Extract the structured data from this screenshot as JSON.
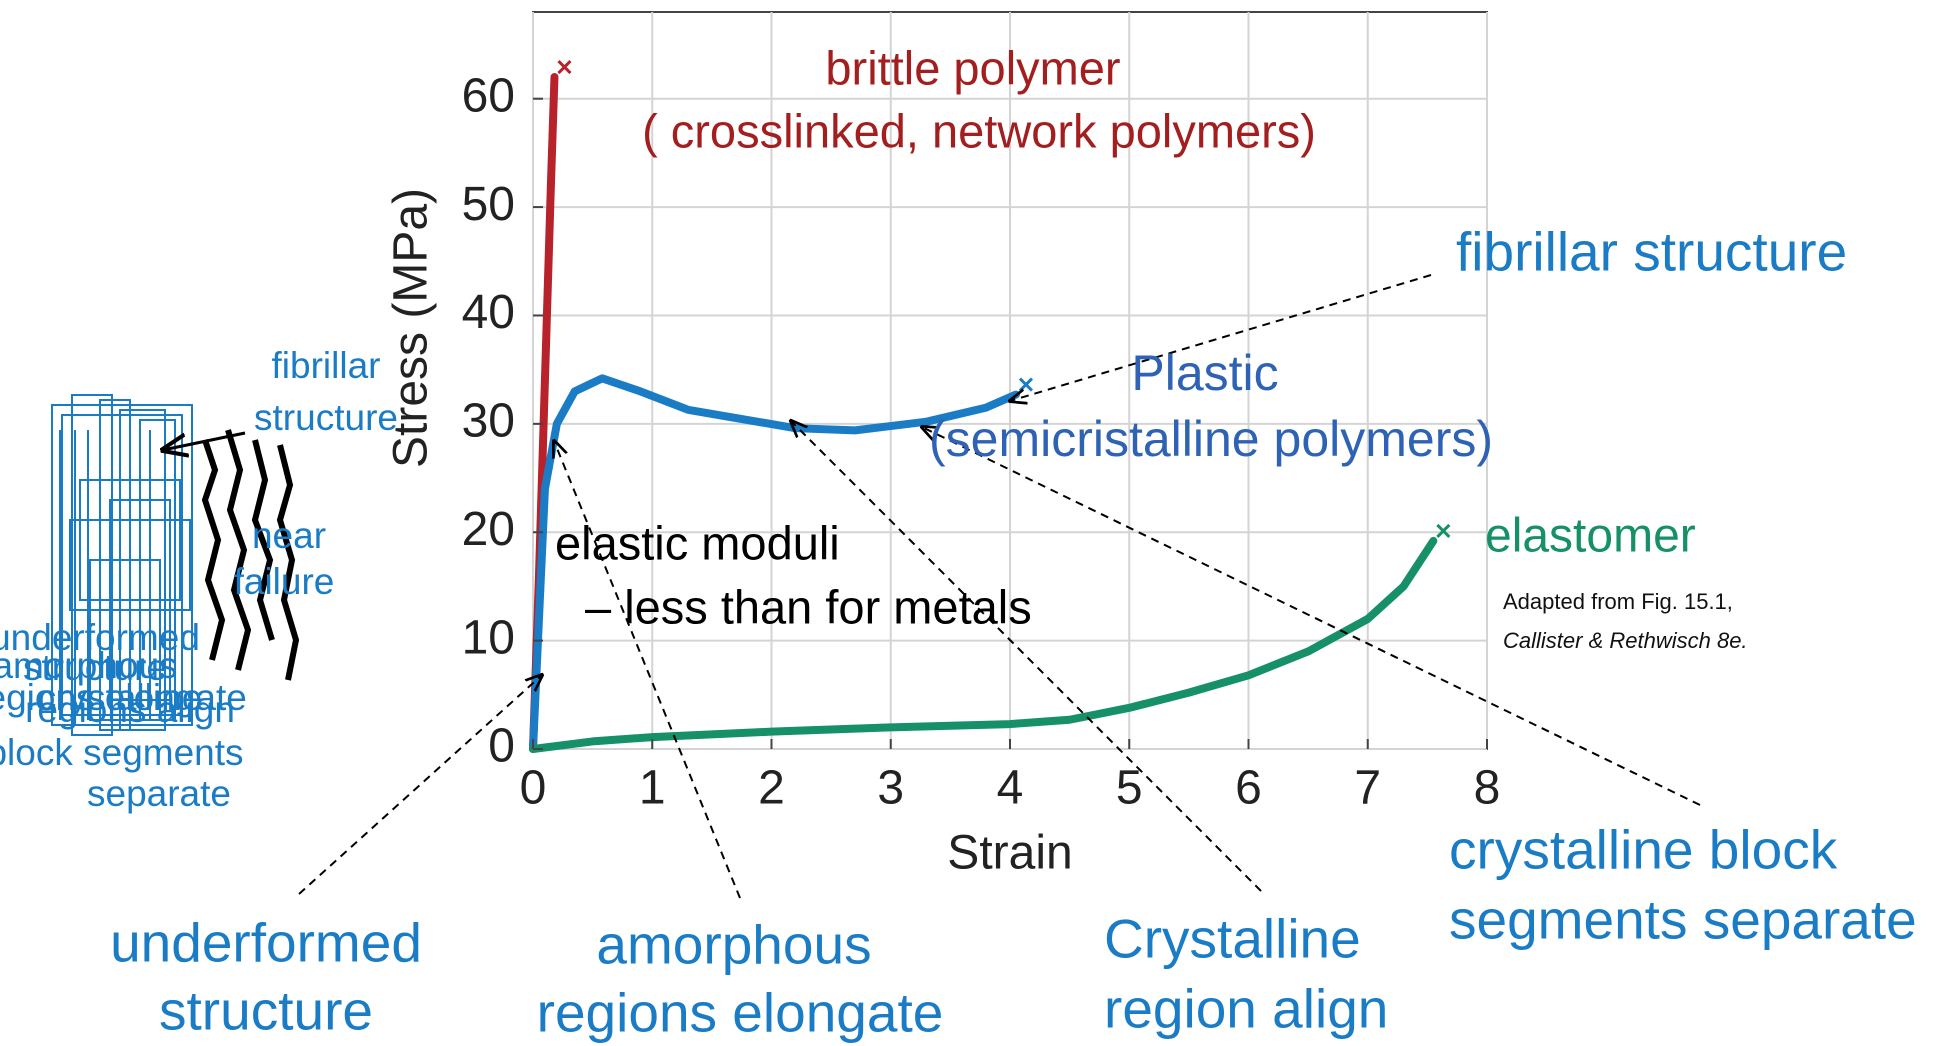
{
  "chart_data": {
    "type": "line",
    "x_label": "Strain",
    "y_label": "Stress (MPa)",
    "xlim": [
      0,
      8
    ],
    "ylim": [
      0,
      68
    ],
    "xticks": [
      0,
      1,
      2,
      3,
      4,
      5,
      6,
      7,
      8
    ],
    "yticks": [
      0,
      10,
      20,
      30,
      40,
      50,
      60
    ],
    "grid": true,
    "series": [
      {
        "color": "#b8222a",
        "x": [
          0,
          0.05,
          0.1,
          0.15,
          0.18
        ],
        "values": [
          0,
          16,
          34,
          52,
          62
        ]
      },
      {
        "color": "#1b7cc6",
        "x": [
          0,
          0.05,
          0.1,
          0.2,
          0.35,
          0.58,
          0.9,
          1.3,
          2.2,
          2.7,
          3.3,
          3.8,
          4.05
        ],
        "values": [
          0,
          12,
          24,
          30,
          33,
          34.2,
          33,
          31.3,
          29.6,
          29.4,
          30.2,
          31.5,
          32.7
        ]
      },
      {
        "color": "#169068",
        "x": [
          0,
          0.5,
          1,
          2,
          3,
          4,
          4.5,
          5,
          5.5,
          6,
          6.5,
          7,
          7.3,
          7.55
        ],
        "values": [
          0,
          0.7,
          1.1,
          1.6,
          2,
          2.3,
          2.7,
          3.8,
          5.2,
          6.8,
          9,
          12,
          15,
          19.2
        ]
      }
    ],
    "annotations": {
      "brittle": [
        "brittle polymer",
        "( crosslinked, network polymers)"
      ],
      "fibrillar": "fibrillar structure",
      "plastic": [
        "Plastic",
        "(semicristalline polymers)"
      ],
      "elastomer": "elastomer",
      "source": [
        "Adapted from Fig. 15.1,",
        "Callister & Rethwisch 8e."
      ],
      "moduli": [
        "elastic moduli",
        "–  less than for metals"
      ],
      "underformed": [
        "underformed",
        "structure"
      ],
      "amorphous": [
        "amorphous",
        "regions elongate"
      ],
      "crystalline_align": [
        "Crystalline",
        "region align"
      ],
      "crystalline_block": [
        "crystalline block",
        "segments separate"
      ]
    },
    "schematic": {
      "fibrillar": [
        "fibrillar",
        "structure"
      ],
      "near_failure": [
        "near",
        "failure"
      ],
      "overlap": [
        "underformed",
        "structure",
        "amorphous",
        "regions elongate",
        "crystalline",
        "regions align",
        "block segments",
        "separate"
      ]
    }
  }
}
